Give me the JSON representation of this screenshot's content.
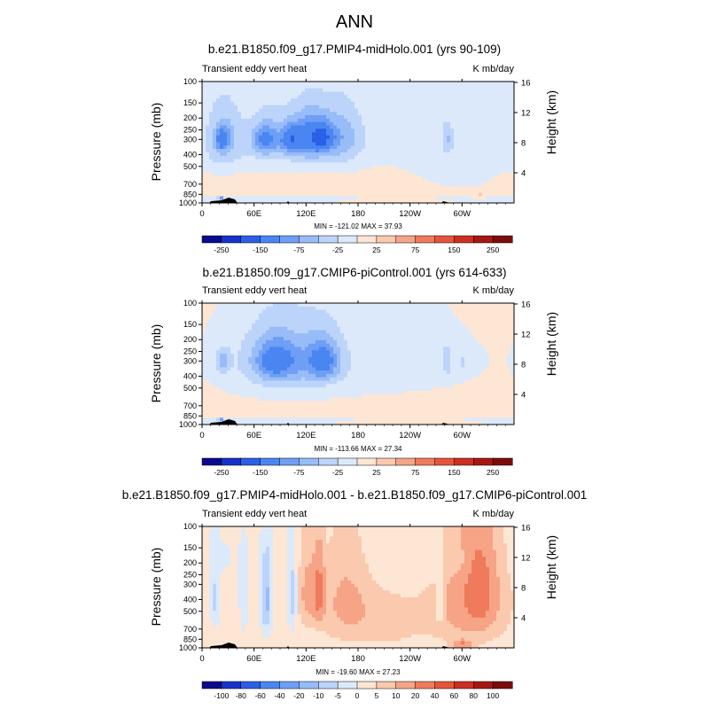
{
  "title": "ANN",
  "chart_data": [
    {
      "type": "heatmap",
      "title": "b.e21.B1850.f09_g17.PMIP4-midHolo.001 (yrs 90-109)",
      "left_label": "Transient eddy vert heat",
      "units": "K mb/day",
      "ylabel": "Pressure (mb)",
      "ylabel_right": "Height (km)",
      "x_ticks": [
        "0",
        "60E",
        "120E",
        "180",
        "120W",
        "60W"
      ],
      "x_range": [
        0,
        360
      ],
      "p_ticks": [
        100,
        150,
        200,
        250,
        300,
        400,
        500,
        700,
        850,
        1000
      ],
      "p_tick_labels": [
        "100",
        "150",
        "200",
        "250",
        "300",
        "400",
        "500",
        "700",
        "850",
        "1000"
      ],
      "z_ticks": [
        4,
        8,
        12,
        16
      ],
      "z_tick_labels": [
        "4",
        "8",
        "12",
        "16"
      ],
      "min": -121.02,
      "max": 37.93,
      "minmax_text": "MIN = -121.02  MAX = 37.93",
      "colorbar_levels": [
        -300,
        -250,
        -200,
        -150,
        -100,
        -75,
        -50,
        -25,
        0,
        25,
        50,
        75,
        100,
        150,
        200,
        250,
        300
      ],
      "colorbar_labels": [
        "-250",
        "-150",
        "-75",
        "-25",
        "25",
        "75",
        "150",
        "250"
      ],
      "background_value": 10,
      "features": [
        {
          "lon": 24,
          "p": 300,
          "dlon": 20,
          "dp": 190,
          "v": -55,
          "note": "blue cell"
        },
        {
          "lon": 24,
          "p": 300,
          "dlon": 7,
          "dp": 60,
          "v": -85
        },
        {
          "lon": 95,
          "p": 300,
          "dlon": 70,
          "dp": 220,
          "v": -45
        },
        {
          "lon": 73,
          "p": 300,
          "dlon": 14,
          "dp": 90,
          "v": -85
        },
        {
          "lon": 102,
          "p": 300,
          "dlon": 12,
          "dp": 80,
          "v": -95
        },
        {
          "lon": 125,
          "p": 290,
          "dlon": 18,
          "dp": 120,
          "v": -90
        },
        {
          "lon": 140,
          "p": 290,
          "dlon": 12,
          "dp": 70,
          "v": -80
        },
        {
          "lon": 160,
          "p": 290,
          "dlon": 26,
          "dp": 160,
          "v": -55
        },
        {
          "lon": 220,
          "p": 260,
          "dlon": 90,
          "dp": 300,
          "v": -12
        },
        {
          "lon": 283,
          "p": 300,
          "dlon": 6,
          "dp": 80,
          "v": -40
        },
        {
          "lon": 300,
          "p": 350,
          "dlon": 60,
          "dp": 500,
          "v": -18
        },
        {
          "lon": 22,
          "p": 930,
          "dlon": 3,
          "dp": 40,
          "v": -110
        },
        {
          "lon": 60,
          "p": 930,
          "dlon": 120,
          "dp": 60,
          "v": -30
        },
        {
          "lon": 320,
          "p": 870,
          "dlon": 12,
          "dp": 40,
          "v": 30
        }
      ]
    },
    {
      "type": "heatmap",
      "title": "b.e21.B1850.f09_g17.CMIP6-piControl.001 (yrs 614-633)",
      "left_label": "Transient eddy vert heat",
      "units": "K mb/day",
      "ylabel": "Pressure (mb)",
      "ylabel_right": "Height (km)",
      "x_ticks": [
        "0",
        "60E",
        "120E",
        "180",
        "120W",
        "60W"
      ],
      "x_range": [
        0,
        360
      ],
      "p_ticks": [
        100,
        150,
        200,
        250,
        300,
        400,
        500,
        700,
        850,
        1000
      ],
      "p_tick_labels": [
        "100",
        "150",
        "200",
        "250",
        "300",
        "400",
        "500",
        "700",
        "850",
        "1000"
      ],
      "z_ticks": [
        4,
        8,
        12,
        16
      ],
      "z_tick_labels": [
        "4",
        "8",
        "12",
        "16"
      ],
      "min": -113.66,
      "max": 27.34,
      "minmax_text": "MIN = -113.66  MAX = 27.34",
      "colorbar_levels": [
        -300,
        -250,
        -200,
        -150,
        -100,
        -75,
        -50,
        -25,
        0,
        25,
        50,
        75,
        100,
        150,
        200,
        250,
        300
      ],
      "colorbar_labels": [
        "-250",
        "-150",
        "-75",
        "-25",
        "25",
        "75",
        "150",
        "250"
      ],
      "background_value": 10,
      "features": [
        {
          "lon": 170,
          "p": 300,
          "dlon": 190,
          "dp": 320,
          "v": -20
        },
        {
          "lon": 24,
          "p": 300,
          "dlon": 8,
          "dp": 70,
          "v": -55
        },
        {
          "lon": 95,
          "p": 300,
          "dlon": 55,
          "dp": 220,
          "v": -50
        },
        {
          "lon": 85,
          "p": 300,
          "dlon": 24,
          "dp": 110,
          "v": -80
        },
        {
          "lon": 140,
          "p": 300,
          "dlon": 20,
          "dp": 120,
          "v": -90
        },
        {
          "lon": 283,
          "p": 300,
          "dlon": 6,
          "dp": 90,
          "v": -45
        },
        {
          "lon": 300,
          "p": 300,
          "dlon": 4,
          "dp": 60,
          "v": -30
        },
        {
          "lon": 22,
          "p": 930,
          "dlon": 3,
          "dp": 40,
          "v": -105
        },
        {
          "lon": 60,
          "p": 930,
          "dlon": 120,
          "dp": 60,
          "v": -28
        }
      ]
    },
    {
      "type": "heatmap",
      "title": "b.e21.B1850.f09_g17.PMIP4-midHolo.001 - b.e21.B1850.f09_g17.CMIP6-piControl.001",
      "left_label": "Transient eddy vert heat",
      "units": "K mb/day",
      "ylabel": "Pressure (mb)",
      "ylabel_right": "Height (km)",
      "x_ticks": [
        "0",
        "60E",
        "120E",
        "180",
        "120W",
        "60W"
      ],
      "x_range": [
        0,
        360
      ],
      "p_ticks": [
        100,
        150,
        200,
        250,
        300,
        400,
        500,
        700,
        850,
        1000
      ],
      "p_tick_labels": [
        "100",
        "150",
        "200",
        "250",
        "300",
        "400",
        "500",
        "700",
        "850",
        "1000"
      ],
      "z_ticks": [
        4,
        8,
        12,
        16
      ],
      "z_tick_labels": [
        "4",
        "8",
        "12",
        "16"
      ],
      "min": -19.6,
      "max": 27.23,
      "minmax_text": "MIN = -19.60  MAX = 27.23",
      "colorbar_levels": [
        -120,
        -100,
        -80,
        -60,
        -40,
        -20,
        -10,
        -5,
        0,
        5,
        10,
        20,
        40,
        60,
        80,
        100,
        120
      ],
      "colorbar_labels": [
        "-100",
        "-80",
        "-60",
        "-40",
        "-20",
        "-10",
        "-5",
        "0",
        "5",
        "10",
        "20",
        "40",
        "60",
        "80",
        "100"
      ],
      "background_value": 2,
      "features": [
        {
          "lon": 14,
          "p": 400,
          "dlon": 6,
          "dp": 260,
          "v": -9
        },
        {
          "lon": 48,
          "p": 400,
          "dlon": 5,
          "dp": 300,
          "v": -6
        },
        {
          "lon": 74,
          "p": 400,
          "dlon": 6,
          "dp": 320,
          "v": -14
        },
        {
          "lon": 104,
          "p": 380,
          "dlon": 5,
          "dp": 280,
          "v": -10
        },
        {
          "lon": 122,
          "p": 350,
          "dlon": 10,
          "dp": 260,
          "v": 10
        },
        {
          "lon": 135,
          "p": 350,
          "dlon": 6,
          "dp": 200,
          "v": 22
        },
        {
          "lon": 165,
          "p": 380,
          "dlon": 25,
          "dp": 320,
          "v": 7
        },
        {
          "lon": 200,
          "p": 600,
          "dlon": 60,
          "dp": 360,
          "v": 6
        },
        {
          "lon": 275,
          "p": 400,
          "dlon": 5,
          "dp": 250,
          "v": -7
        },
        {
          "lon": 310,
          "p": 400,
          "dlon": 40,
          "dp": 450,
          "v": 13
        },
        {
          "lon": 320,
          "p": 350,
          "dlon": 14,
          "dp": 220,
          "v": 21
        },
        {
          "lon": 300,
          "p": 930,
          "dlon": 10,
          "dp": 60,
          "v": 18
        },
        {
          "lon": 20,
          "p": 180,
          "dlon": 25,
          "dp": 80,
          "v": -3
        },
        {
          "lon": 240,
          "p": 200,
          "dlon": 40,
          "dp": 120,
          "v": -3
        },
        {
          "lon": 300,
          "p": 200,
          "dlon": 15,
          "dp": 60,
          "v": -4
        }
      ]
    }
  ]
}
